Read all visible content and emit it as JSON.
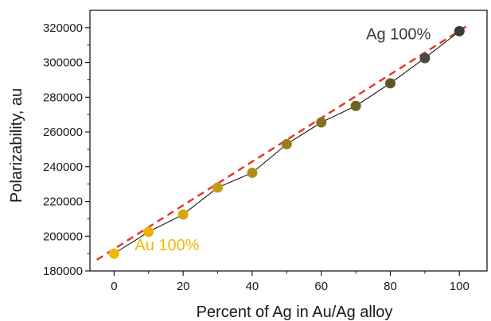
{
  "chart_data": {
    "type": "scatter",
    "title": "",
    "xlabel": "Percent of Ag in Au/Ag alloy",
    "ylabel": "Polarizability, au",
    "xlim": [
      -7,
      108
    ],
    "ylim": [
      180000,
      330000
    ],
    "x_ticks": [
      0,
      20,
      40,
      60,
      80,
      100
    ],
    "x_tick_labels": [
      "0",
      "20",
      "40",
      "60",
      "80",
      "100"
    ],
    "y_ticks": [
      180000,
      200000,
      220000,
      240000,
      260000,
      280000,
      300000,
      320000
    ],
    "y_tick_labels": [
      "180000",
      "200000",
      "220000",
      "240000",
      "260000",
      "280000",
      "300000",
      "320000"
    ],
    "grid": false,
    "series": [
      {
        "x": [
          0,
          10,
          20,
          30,
          40,
          50,
          60,
          70,
          80,
          90,
          100
        ],
        "y": [
          190000,
          202500,
          212500,
          228000,
          236500,
          253000,
          265500,
          275000,
          288000,
          302500,
          318000
        ],
        "colors": [
          "#f2b705",
          "#e8b20a",
          "#d6a80f",
          "#c49c14",
          "#b08f18",
          "#9a801c",
          "#85711f",
          "#716322",
          "#5e5625",
          "#4c4a3f",
          "#3a3a3a"
        ],
        "connector_color": "#000000"
      }
    ],
    "fit_line": {
      "style": "dashed",
      "color": "#e8321c",
      "x": [
        -5,
        103
      ],
      "y": [
        186400,
        322000
      ]
    },
    "annotations": [
      {
        "text": "Au 100%",
        "x": 6,
        "y": 195000,
        "color": "#f2b705"
      },
      {
        "text": "Ag 100%",
        "x": 73,
        "y": 316500,
        "color": "#3a3a3a"
      }
    ]
  }
}
